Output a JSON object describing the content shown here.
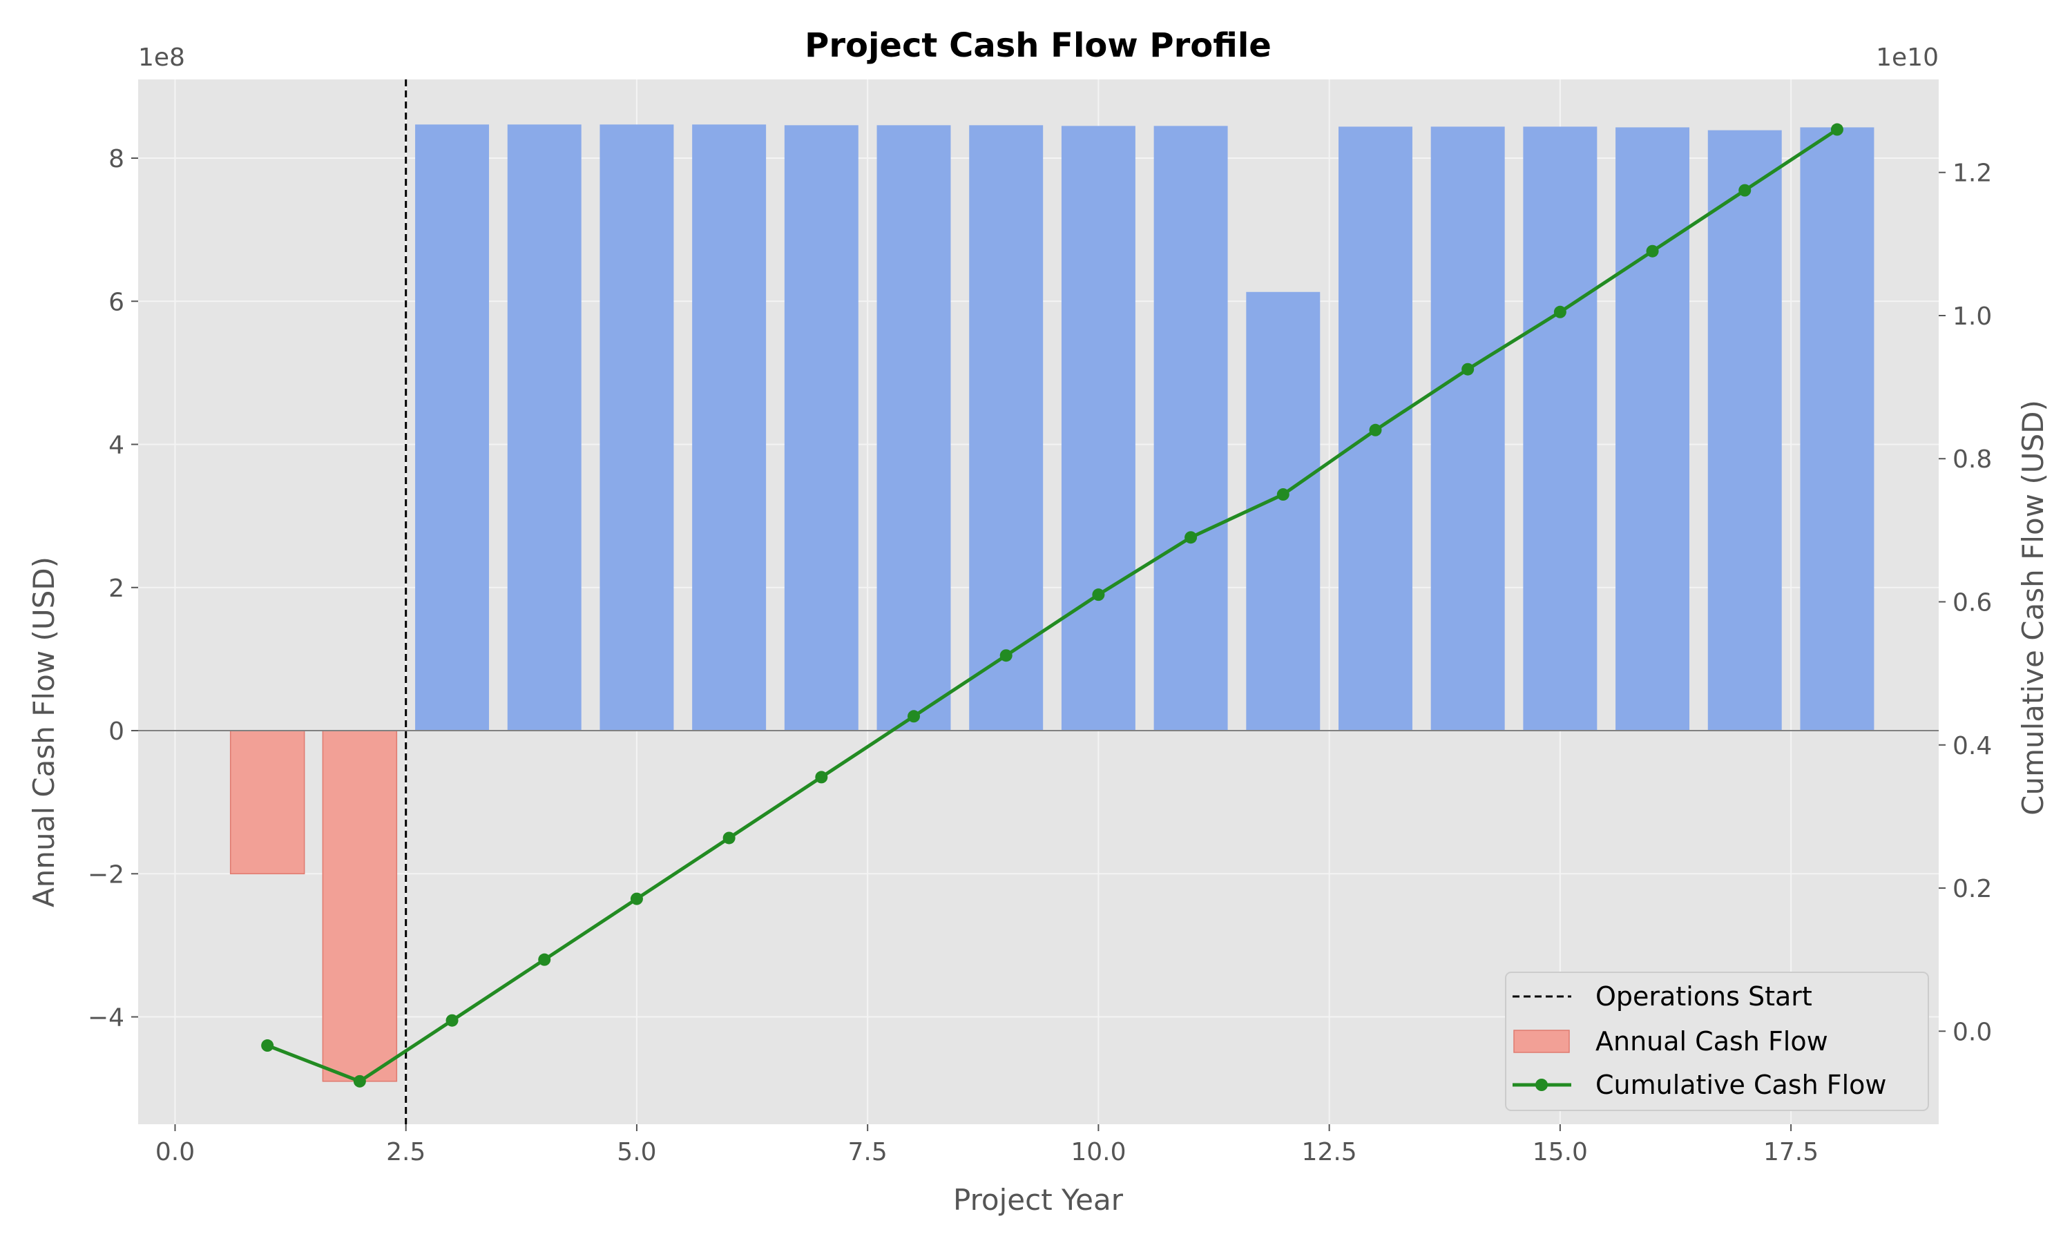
{
  "chart_data": {
    "type": "bar",
    "title": "Project Cash Flow Profile",
    "xlabel": "Project Year",
    "ylabel": "Annual Cash Flow (USD)",
    "ylabel_right": "Cumulative Cash Flow (USD)",
    "y_offset_text": "1e8",
    "y_right_offset_text": "1e10",
    "xlim": [
      -0.4,
      19.1
    ],
    "ylim": [
      -5.5,
      9.1
    ],
    "ylim_right": [
      -0.13,
      1.33
    ],
    "x_ticks": [
      0.0,
      2.5,
      5.0,
      7.5,
      10.0,
      12.5,
      15.0,
      17.5
    ],
    "x_tick_labels": [
      "0.0",
      "2.5",
      "5.0",
      "7.5",
      "10.0",
      "12.5",
      "15.0",
      "17.5"
    ],
    "y_ticks": [
      -4,
      -2,
      0,
      2,
      4,
      6,
      8
    ],
    "y_tick_labels": [
      "−4",
      "−2",
      "0",
      "2",
      "4",
      "6",
      "8"
    ],
    "y_right_ticks": [
      0.0,
      0.2,
      0.4,
      0.6,
      0.8,
      1.0,
      1.2
    ],
    "y_right_tick_labels": [
      "0.0",
      "0.2",
      "0.4",
      "0.6",
      "0.8",
      "1.0",
      "1.2"
    ],
    "grid": true,
    "legend_position": "lower-right",
    "colors": {
      "positive_bar": "#8aaae9",
      "negative_bar": "#f2a096",
      "negative_bar_edge": "#e07a6f",
      "cumulative_line": "#228b22",
      "reference_line": "#000000",
      "plot_background": "#e5e5e5",
      "grid": "#f4f4f4",
      "zero_line": "#808080"
    },
    "vertical_line": {
      "x": 2.5,
      "label": "Operations Start",
      "style": "dashed"
    },
    "series": [
      {
        "name": "Annual Cash Flow",
        "type": "bar",
        "axis": "left",
        "x": [
          1,
          2,
          3,
          4,
          5,
          6,
          7,
          8,
          9,
          10,
          11,
          12,
          13,
          14,
          15,
          16,
          17,
          18
        ],
        "values": [
          -2.0,
          -4.9,
          8.47,
          8.47,
          8.47,
          8.47,
          8.46,
          8.46,
          8.46,
          8.45,
          8.45,
          6.13,
          8.44,
          8.44,
          8.44,
          8.43,
          8.39,
          8.43
        ]
      },
      {
        "name": "Cumulative Cash Flow",
        "type": "line",
        "axis": "right",
        "x": [
          1,
          2,
          3,
          4,
          5,
          6,
          7,
          8,
          9,
          10,
          11,
          12,
          13,
          14,
          15,
          16,
          17,
          18
        ],
        "values": [
          -0.02,
          -0.07,
          0.015,
          0.1,
          0.185,
          0.27,
          0.355,
          0.44,
          0.525,
          0.61,
          0.69,
          0.75,
          0.84,
          0.925,
          1.005,
          1.09,
          1.175,
          1.26
        ]
      }
    ]
  }
}
